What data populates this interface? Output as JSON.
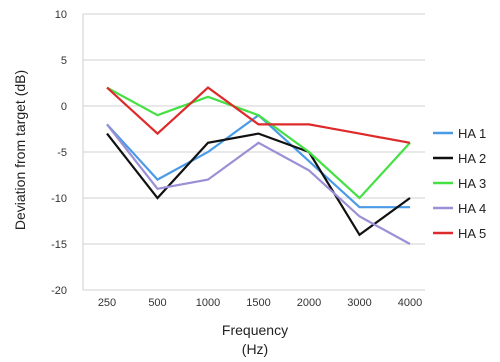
{
  "chart_data": {
    "type": "line",
    "title": "",
    "xlabel": "Frequency (Hz)",
    "xlabel_lines": [
      "Frequency",
      "(Hz)"
    ],
    "ylabel": "Deviation  from target (dB)",
    "categories": [
      "250",
      "500",
      "1000",
      "1500",
      "2000",
      "3000",
      "4000"
    ],
    "yticks": [
      10,
      5,
      0,
      -5,
      -10,
      -15,
      -20
    ],
    "ylim": [
      -20,
      10
    ],
    "grid": "horizontal",
    "legend_position": "right",
    "series": [
      {
        "name": "HA 1",
        "color": "#4a9ae8",
        "values": [
          -2,
          -8,
          -5,
          -1,
          -6,
          -11,
          -11
        ]
      },
      {
        "name": "HA 2",
        "color": "#111111",
        "values": [
          -3,
          -10,
          -4,
          -3,
          -5,
          -14,
          -10
        ]
      },
      {
        "name": "HA 3",
        "color": "#44e044",
        "values": [
          2,
          -1,
          1,
          -1,
          -5,
          -10,
          -4
        ]
      },
      {
        "name": "HA 4",
        "color": "#9b8fd6",
        "values": [
          -2,
          -9,
          -8,
          -4,
          -7,
          -12,
          -15
        ]
      },
      {
        "name": "HA 5",
        "color": "#dd2a2a",
        "values": [
          2,
          -3,
          2,
          -2,
          -2,
          -3,
          -4
        ]
      }
    ]
  }
}
